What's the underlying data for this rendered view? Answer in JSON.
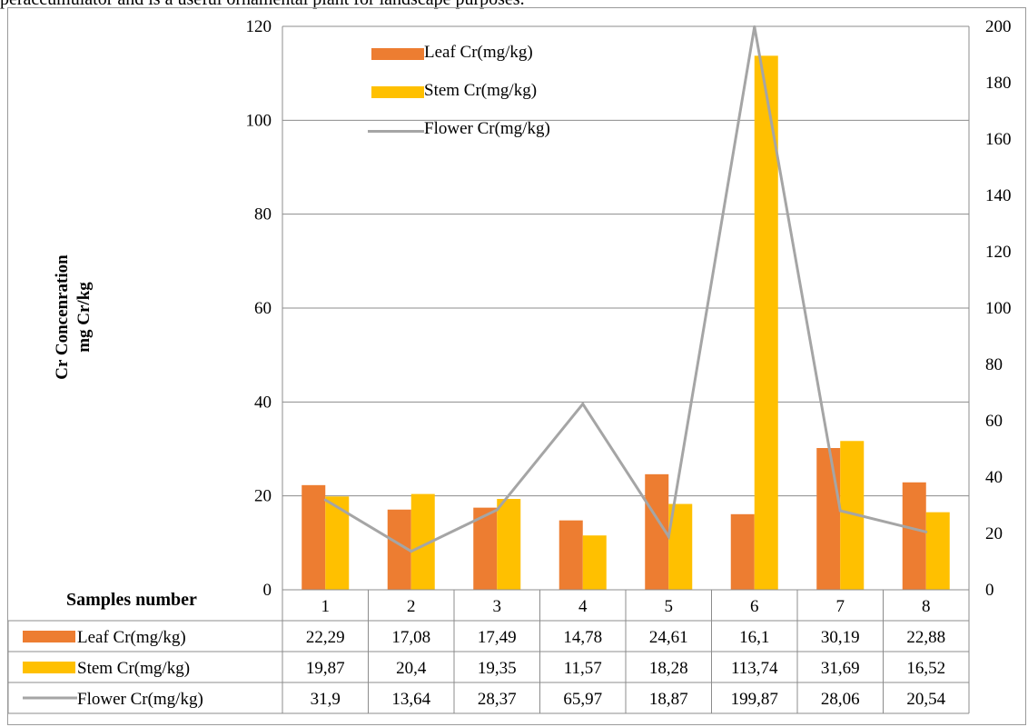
{
  "caption": "peraccumulator and is a useful ornamental plant for landscape purposes.",
  "chart_data": {
    "type": "bar",
    "title": "",
    "xlabel": "Samples number",
    "ylabel": [
      "Cr Concenration",
      "mg Cr/kg"
    ],
    "categories": [
      "1",
      "2",
      "3",
      "4",
      "5",
      "6",
      "7",
      "8"
    ],
    "ylim": [
      0,
      120
    ],
    "y_ticks": [
      0,
      20,
      40,
      60,
      80,
      100,
      120
    ],
    "y2lim": [
      0,
      200
    ],
    "y2_ticks": [
      0,
      20,
      40,
      60,
      80,
      100,
      120,
      140,
      160,
      180,
      200
    ],
    "grid": true,
    "legend_position": "top-center",
    "series": [
      {
        "name": "Leaf Cr(mg/kg)",
        "kind": "bar",
        "axis": "primary",
        "color": "#ed7d31",
        "values": [
          22.29,
          17.08,
          17.49,
          14.78,
          24.61,
          16.1,
          30.19,
          22.88
        ],
        "labels": [
          "22,29",
          "17,08",
          "17,49",
          "14,78",
          "24,61",
          "16,1",
          "30,19",
          "22,88"
        ]
      },
      {
        "name": "Stem Cr(mg/kg)",
        "kind": "bar",
        "axis": "primary",
        "color": "#ffc000",
        "values": [
          19.87,
          20.4,
          19.35,
          11.57,
          18.28,
          113.74,
          31.69,
          16.52
        ],
        "labels": [
          "19,87",
          "20,4",
          "19,35",
          "11,57",
          "18,28",
          "113,74",
          "31,69",
          "16,52"
        ]
      },
      {
        "name": "Flower Cr(mg/kg)",
        "kind": "line",
        "axis": "secondary",
        "color": "#a5a5a5",
        "values": [
          31.9,
          13.64,
          28.37,
          65.97,
          18.87,
          199.87,
          28.06,
          20.54
        ],
        "labels": [
          "31,9",
          "13,64",
          "28,37",
          "65,97",
          "18,87",
          "199,87",
          "28,06",
          "20,54"
        ]
      }
    ]
  }
}
